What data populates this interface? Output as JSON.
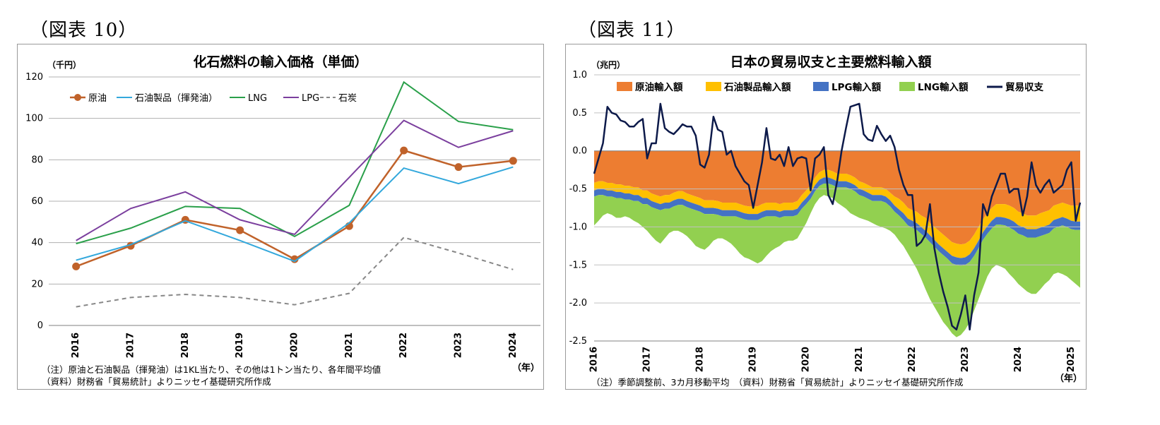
{
  "fig10": {
    "label": "（図表 10）",
    "chart_data": {
      "type": "line",
      "title": "化石燃料の輸入価格（単価）",
      "unit": "（千円）",
      "xlabel": "（年）",
      "categories": [
        "2016",
        "2017",
        "2018",
        "2019",
        "2020",
        "2021",
        "2022",
        "2023",
        "2024"
      ],
      "ylim": [
        0,
        120
      ],
      "yticks": [
        0,
        20,
        40,
        60,
        80,
        100,
        120
      ],
      "series": [
        {
          "name": "原油",
          "color": "#c0622a",
          "style": "marker",
          "values": [
            28.5,
            38.5,
            51,
            46,
            32,
            48,
            84.5,
            76.5,
            79.5
          ]
        },
        {
          "name": "石油製品（揮発油）",
          "color": "#33a8dc",
          "style": "solid",
          "values": [
            31.5,
            39,
            50.5,
            41,
            31,
            49.5,
            76,
            68.5,
            76.5
          ]
        },
        {
          "name": "LNG",
          "color": "#2aa04a",
          "style": "solid",
          "values": [
            39.5,
            47,
            57.5,
            56.5,
            43,
            58,
            117.5,
            98.5,
            94.5
          ]
        },
        {
          "name": "LPG",
          "color": "#7b3f9e",
          "style": "solid",
          "values": [
            41,
            56.5,
            64.5,
            51,
            44,
            71.5,
            99,
            86,
            94
          ]
        },
        {
          "name": "石炭",
          "color": "#888888",
          "style": "dashed",
          "values": [
            9,
            13.5,
            15,
            13.5,
            10,
            15.5,
            42.5,
            35,
            27
          ]
        }
      ]
    },
    "note1": "（注）原油と石油製品（揮発油）は1KL当たり、その他は1トン当たり、各年間平均値",
    "note2": "（資料）財務省「貿易統計」よりニッセイ基礎研究所作成"
  },
  "fig11": {
    "label": "（図表 11）",
    "chart_data": {
      "type": "area",
      "title": "日本の貿易収支と主要燃料輸入額",
      "unit": "（兆円）",
      "xlabel": "（年）",
      "ylim": [
        -2.5,
        1.0
      ],
      "yticks": [
        "1.0",
        "0.5",
        "0.0",
        "-0.5",
        "-1.0",
        "-1.5",
        "-2.0",
        "-2.5"
      ],
      "x_start": "2016-01",
      "x_tick_labels": [
        "2016",
        "2017",
        "2018",
        "2019",
        "2020",
        "2021",
        "2022",
        "2023",
        "2024",
        "2025"
      ],
      "legend": [
        {
          "name": "原油輸入額",
          "color": "#ed7d31",
          "type": "box"
        },
        {
          "name": "石油製品輸入額",
          "color": "#ffc000",
          "type": "box"
        },
        {
          "name": "LPG輸入額",
          "color": "#4472c4",
          "type": "box"
        },
        {
          "name": "LNG輸入額",
          "color": "#92d050",
          "type": "box"
        },
        {
          "name": "貿易収支",
          "color": "#0d1a4a",
          "type": "line"
        }
      ],
      "oil_level": [
        -0.42,
        -0.4,
        -0.4,
        -0.42,
        -0.42,
        -0.44,
        -0.44,
        -0.46,
        -0.46,
        -0.48,
        -0.48,
        -0.52,
        -0.52,
        -0.56,
        -0.58,
        -0.6,
        -0.58,
        -0.58,
        -0.55,
        -0.53,
        -0.53,
        -0.56,
        -0.58,
        -0.6,
        -0.62,
        -0.65,
        -0.65,
        -0.65,
        -0.66,
        -0.68,
        -0.68,
        -0.68,
        -0.68,
        -0.7,
        -0.72,
        -0.73,
        -0.73,
        -0.73,
        -0.7,
        -0.68,
        -0.68,
        -0.68,
        -0.7,
        -0.68,
        -0.68,
        -0.68,
        -0.66,
        -0.58,
        -0.52,
        -0.45,
        -0.35,
        -0.28,
        -0.25,
        -0.25,
        -0.27,
        -0.3,
        -0.3,
        -0.3,
        -0.32,
        -0.35,
        -0.4,
        -0.42,
        -0.45,
        -0.48,
        -0.48,
        -0.48,
        -0.5,
        -0.55,
        -0.6,
        -0.63,
        -0.68,
        -0.75,
        -0.78,
        -0.8,
        -0.85,
        -0.88,
        -0.95,
        -1.0,
        -1.05,
        -1.1,
        -1.15,
        -1.2,
        -1.22,
        -1.23,
        -1.22,
        -1.18,
        -1.1,
        -1.0,
        -0.9,
        -0.82,
        -0.75,
        -0.7,
        -0.7,
        -0.7,
        -0.72,
        -0.75,
        -0.8,
        -0.82,
        -0.85,
        -0.85,
        -0.85,
        -0.82,
        -0.8,
        -0.78,
        -0.72,
        -0.7,
        -0.68,
        -0.7,
        -0.72,
        -0.72,
        -0.72,
        -0.72
      ],
      "products_level": [
        -0.52,
        -0.5,
        -0.5,
        -0.52,
        -0.52,
        -0.54,
        -0.54,
        -0.56,
        -0.56,
        -0.58,
        -0.58,
        -0.62,
        -0.62,
        -0.66,
        -0.68,
        -0.7,
        -0.68,
        -0.68,
        -0.65,
        -0.63,
        -0.63,
        -0.66,
        -0.68,
        -0.7,
        -0.72,
        -0.75,
        -0.75,
        -0.75,
        -0.76,
        -0.78,
        -0.78,
        -0.78,
        -0.78,
        -0.8,
        -0.82,
        -0.83,
        -0.83,
        -0.83,
        -0.8,
        -0.78,
        -0.78,
        -0.78,
        -0.8,
        -0.78,
        -0.78,
        -0.78,
        -0.76,
        -0.68,
        -0.62,
        -0.55,
        -0.45,
        -0.38,
        -0.35,
        -0.35,
        -0.37,
        -0.4,
        -0.4,
        -0.4,
        -0.42,
        -0.45,
        -0.5,
        -0.52,
        -0.55,
        -0.58,
        -0.58,
        -0.58,
        -0.6,
        -0.65,
        -0.72,
        -0.77,
        -0.82,
        -0.89,
        -0.92,
        -0.95,
        -1.0,
        -1.05,
        -1.11,
        -1.17,
        -1.23,
        -1.28,
        -1.33,
        -1.38,
        -1.4,
        -1.41,
        -1.4,
        -1.36,
        -1.28,
        -1.18,
        -1.07,
        -0.99,
        -0.92,
        -0.87,
        -0.87,
        -0.88,
        -0.9,
        -0.93,
        -0.98,
        -1.0,
        -1.03,
        -1.03,
        -1.03,
        -1.01,
        -0.99,
        -0.97,
        -0.91,
        -0.89,
        -0.87,
        -0.89,
        -0.92,
        -0.93,
        -0.93,
        -0.93
      ],
      "lpg_level": [
        -0.6,
        -0.58,
        -0.58,
        -0.6,
        -0.6,
        -0.62,
        -0.62,
        -0.64,
        -0.64,
        -0.66,
        -0.66,
        -0.7,
        -0.7,
        -0.74,
        -0.76,
        -0.78,
        -0.76,
        -0.76,
        -0.73,
        -0.71,
        -0.71,
        -0.74,
        -0.76,
        -0.78,
        -0.8,
        -0.83,
        -0.83,
        -0.83,
        -0.84,
        -0.86,
        -0.86,
        -0.86,
        -0.86,
        -0.88,
        -0.9,
        -0.91,
        -0.91,
        -0.91,
        -0.88,
        -0.86,
        -0.86,
        -0.86,
        -0.88,
        -0.86,
        -0.86,
        -0.86,
        -0.84,
        -0.76,
        -0.7,
        -0.63,
        -0.53,
        -0.46,
        -0.43,
        -0.43,
        -0.45,
        -0.48,
        -0.48,
        -0.48,
        -0.5,
        -0.53,
        -0.58,
        -0.6,
        -0.63,
        -0.66,
        -0.66,
        -0.66,
        -0.68,
        -0.73,
        -0.8,
        -0.85,
        -0.91,
        -0.98,
        -1.01,
        -1.04,
        -1.09,
        -1.14,
        -1.2,
        -1.26,
        -1.32,
        -1.37,
        -1.42,
        -1.48,
        -1.5,
        -1.51,
        -1.5,
        -1.46,
        -1.38,
        -1.28,
        -1.17,
        -1.09,
        -1.02,
        -0.97,
        -0.97,
        -0.98,
        -1.01,
        -1.04,
        -1.09,
        -1.11,
        -1.14,
        -1.14,
        -1.14,
        -1.12,
        -1.1,
        -1.08,
        -1.02,
        -1.0,
        -0.98,
        -1.0,
        -1.03,
        -1.04,
        -1.04,
        -1.04
      ],
      "lng_level": [
        -0.98,
        -0.92,
        -0.85,
        -0.82,
        -0.84,
        -0.88,
        -0.88,
        -0.86,
        -0.88,
        -0.92,
        -0.95,
        -1.0,
        -1.05,
        -1.12,
        -1.18,
        -1.22,
        -1.15,
        -1.08,
        -1.05,
        -1.05,
        -1.08,
        -1.12,
        -1.18,
        -1.25,
        -1.28,
        -1.3,
        -1.25,
        -1.18,
        -1.15,
        -1.15,
        -1.18,
        -1.22,
        -1.28,
        -1.35,
        -1.4,
        -1.42,
        -1.45,
        -1.48,
        -1.45,
        -1.38,
        -1.32,
        -1.28,
        -1.25,
        -1.2,
        -1.18,
        -1.18,
        -1.15,
        -1.05,
        -0.95,
        -0.82,
        -0.7,
        -0.62,
        -0.58,
        -0.6,
        -0.62,
        -0.68,
        -0.72,
        -0.76,
        -0.82,
        -0.85,
        -0.88,
        -0.9,
        -0.92,
        -0.95,
        -0.98,
        -1.0,
        -1.02,
        -1.05,
        -1.1,
        -1.18,
        -1.25,
        -1.35,
        -1.45,
        -1.55,
        -1.68,
        -1.82,
        -1.95,
        -2.05,
        -2.15,
        -2.25,
        -2.32,
        -2.4,
        -2.45,
        -2.42,
        -2.35,
        -2.25,
        -2.1,
        -1.95,
        -1.8,
        -1.65,
        -1.55,
        -1.5,
        -1.52,
        -1.55,
        -1.62,
        -1.68,
        -1.75,
        -1.8,
        -1.85,
        -1.88,
        -1.88,
        -1.82,
        -1.75,
        -1.7,
        -1.62,
        -1.6,
        -1.62,
        -1.65,
        -1.7,
        -1.75,
        -1.8,
        -1.85
      ],
      "trade_balance": [
        -0.3,
        -0.1,
        0.1,
        0.58,
        0.5,
        0.48,
        0.4,
        0.38,
        0.32,
        0.32,
        0.38,
        0.42,
        -0.1,
        0.1,
        0.1,
        0.62,
        0.3,
        0.25,
        0.22,
        0.28,
        0.35,
        0.32,
        0.32,
        0.2,
        -0.18,
        -0.22,
        -0.05,
        0.45,
        0.28,
        0.25,
        -0.05,
        0.0,
        -0.2,
        -0.3,
        -0.4,
        -0.45,
        -0.75,
        -0.45,
        -0.15,
        0.3,
        -0.1,
        -0.12,
        -0.05,
        -0.2,
        0.05,
        -0.2,
        -0.1,
        -0.08,
        -0.1,
        -0.52,
        -0.1,
        -0.05,
        0.05,
        -0.58,
        -0.7,
        -0.4,
        0.0,
        0.3,
        0.58,
        0.6,
        0.62,
        0.22,
        0.15,
        0.13,
        0.33,
        0.22,
        0.13,
        0.2,
        0.05,
        -0.25,
        -0.45,
        -0.58,
        -0.58,
        -1.25,
        -1.2,
        -1.1,
        -0.7,
        -1.28,
        -1.6,
        -1.85,
        -2.05,
        -2.3,
        -2.35,
        -2.15,
        -1.9,
        -2.35,
        -1.9,
        -1.6,
        -0.7,
        -0.85,
        -0.6,
        -0.45,
        -0.3,
        -0.3,
        -0.55,
        -0.5,
        -0.5,
        -0.85,
        -0.6,
        -0.15,
        -0.45,
        -0.55,
        -0.45,
        -0.38,
        -0.55,
        -0.5,
        -0.45,
        -0.25,
        -0.15,
        -0.92,
        -0.68
      ]
    },
    "note": "（注）季節調整前、3カ月移動平均　（資料）財務省「貿易統計」よりニッセイ基礎研究所作成"
  }
}
